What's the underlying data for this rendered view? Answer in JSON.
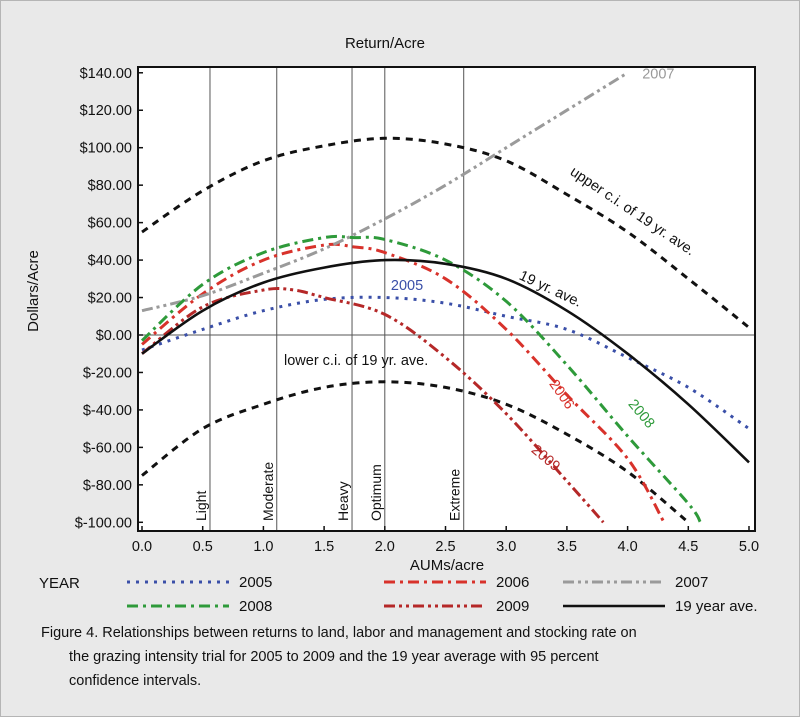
{
  "chart_data": {
    "type": "line",
    "title": "Return/Acre",
    "xlabel": "AUMs/acre",
    "ylabel": "Dollars/Acre",
    "xlim": [
      0.0,
      5.0
    ],
    "ylim": [
      -100,
      140
    ],
    "x_ticks": [
      "0.0",
      "0.5",
      "1.0",
      "1.5",
      "2.0",
      "2.5",
      "3.0",
      "3.5",
      "4.0",
      "4.5",
      "5.0"
    ],
    "x_tick_values": [
      0,
      0.5,
      1,
      1.5,
      2,
      2.5,
      3,
      3.5,
      4,
      4.5,
      5
    ],
    "y_ticks": [
      "$140.00",
      "$120.00",
      "$100.00",
      "$80.00",
      "$60.00",
      "$40.00",
      "$20.00",
      "$0.00",
      "$-20.00",
      "$-40.00",
      "$-60.00",
      "$-80.00",
      "$-100.00"
    ],
    "y_tick_values": [
      140,
      120,
      100,
      80,
      60,
      40,
      20,
      0,
      -20,
      -40,
      -60,
      -80,
      -100
    ],
    "zero_line": true,
    "grid": false,
    "stocking_rates": [
      {
        "label": "Light",
        "x": 0.56
      },
      {
        "label": "Moderate",
        "x": 1.11
      },
      {
        "label": "Heavy",
        "x": 1.73
      },
      {
        "label": "Optimum",
        "x": 2.0
      },
      {
        "label": "Extreme",
        "x": 2.65
      }
    ],
    "series": [
      {
        "name": "2005",
        "color": "#3a4fa8",
        "dash": "dot",
        "points": [
          [
            0,
            -8
          ],
          [
            0.5,
            3
          ],
          [
            1,
            13
          ],
          [
            1.5,
            19
          ],
          [
            2,
            20
          ],
          [
            2.5,
            17
          ],
          [
            3,
            10
          ],
          [
            3.5,
            3
          ],
          [
            4,
            -12
          ],
          [
            4.5,
            -28
          ],
          [
            5,
            -50
          ]
        ]
      },
      {
        "name": "2006",
        "color": "#d8322b",
        "dash": "dashdot",
        "points": [
          [
            0,
            -5
          ],
          [
            0.5,
            22
          ],
          [
            1,
            40
          ],
          [
            1.5,
            48
          ],
          [
            1.75,
            47
          ],
          [
            2,
            44
          ],
          [
            2.5,
            30
          ],
          [
            3,
            3
          ],
          [
            3.5,
            -32
          ],
          [
            4,
            -66
          ],
          [
            4.3,
            -100
          ]
        ]
      },
      {
        "name": "2007",
        "color": "#9a9a9a",
        "dash": "dashdotdot",
        "points": [
          [
            0,
            13
          ],
          [
            0.5,
            21
          ],
          [
            1,
            33
          ],
          [
            1.5,
            46
          ],
          [
            2,
            62
          ],
          [
            2.5,
            80
          ],
          [
            3,
            100
          ],
          [
            3.5,
            120
          ],
          [
            4,
            140
          ]
        ]
      },
      {
        "name": "2008",
        "color": "#2e9a3a",
        "dash": "dashdot",
        "points": [
          [
            0,
            -3
          ],
          [
            0.5,
            27
          ],
          [
            1,
            44
          ],
          [
            1.5,
            52
          ],
          [
            1.75,
            52
          ],
          [
            2,
            51
          ],
          [
            2.5,
            40
          ],
          [
            3,
            18
          ],
          [
            3.5,
            -16
          ],
          [
            4,
            -54
          ],
          [
            4.5,
            -90
          ],
          [
            4.6,
            -100
          ]
        ]
      },
      {
        "name": "2009",
        "color": "#b52828",
        "dash": "dashdotdot",
        "points": [
          [
            0,
            -10
          ],
          [
            0.5,
            15
          ],
          [
            1,
            24
          ],
          [
            1.25,
            24
          ],
          [
            1.5,
            20
          ],
          [
            2,
            11
          ],
          [
            2.5,
            -12
          ],
          [
            3,
            -42
          ],
          [
            3.5,
            -78
          ],
          [
            3.8,
            -100
          ]
        ]
      },
      {
        "name": "19 year ave.",
        "color": "#111111",
        "dash": "solid",
        "points": [
          [
            0,
            -10
          ],
          [
            0.5,
            13
          ],
          [
            1,
            28
          ],
          [
            1.5,
            36
          ],
          [
            2,
            40
          ],
          [
            2.5,
            38
          ],
          [
            3,
            30
          ],
          [
            3.5,
            13
          ],
          [
            4,
            -10
          ],
          [
            4.5,
            -37
          ],
          [
            5,
            -68
          ]
        ]
      }
    ],
    "confidence_intervals": [
      {
        "label": "upper c.i. of 19 yr. ave.",
        "color": "#111111",
        "dash": "dash",
        "points": [
          [
            0,
            55
          ],
          [
            0.5,
            77
          ],
          [
            1,
            93
          ],
          [
            1.5,
            101
          ],
          [
            2,
            105
          ],
          [
            2.5,
            102
          ],
          [
            3,
            93
          ],
          [
            3.5,
            75
          ],
          [
            4,
            55
          ],
          [
            4.5,
            30
          ],
          [
            5,
            4
          ]
        ]
      },
      {
        "label": "lower c.i. of 19 yr. ave.",
        "color": "#111111",
        "dash": "dash",
        "points": [
          [
            0,
            -75
          ],
          [
            0.5,
            -50
          ],
          [
            1,
            -37
          ],
          [
            1.5,
            -28
          ],
          [
            2,
            -25
          ],
          [
            2.5,
            -28
          ],
          [
            3,
            -37
          ],
          [
            3.5,
            -53
          ],
          [
            4,
            -73
          ],
          [
            4.5,
            -100
          ]
        ]
      }
    ],
    "inline_labels": [
      {
        "text": "2005",
        "color": "#3a4fa8",
        "x": 2.05,
        "y": 24,
        "rotate": 0
      },
      {
        "text": "2006",
        "color": "#d8322b",
        "x": 3.35,
        "y": -26,
        "rotate": 55
      },
      {
        "text": "2007",
        "color": "#9a9a9a",
        "x": 4.12,
        "y": 137,
        "rotate": 0
      },
      {
        "text": "2008",
        "color": "#2e9a3a",
        "x": 4.0,
        "y": -37,
        "rotate": 50
      },
      {
        "text": "2009",
        "color": "#b52828",
        "x": 3.2,
        "y": -62,
        "rotate": 40
      },
      {
        "text": "19 yr. ave.",
        "color": "#111111",
        "x": 3.1,
        "y": 30,
        "rotate": 25
      },
      {
        "text": "upper c.i. of 19 yr. ave.",
        "color": "#111111",
        "x": 3.52,
        "y": 86,
        "rotate": 34
      },
      {
        "text": "lower c.i. of 19 yr. ave.",
        "color": "#111111",
        "x": 1.17,
        "y": -16,
        "rotate": 0
      }
    ]
  },
  "legend": {
    "title": "YEAR",
    "entries": [
      {
        "name": "2005",
        "color": "#3a4fa8",
        "dash": "dot"
      },
      {
        "name": "2006",
        "color": "#d8322b",
        "dash": "dashdot"
      },
      {
        "name": "2007",
        "color": "#9a9a9a",
        "dash": "dashdotdot"
      },
      {
        "name": "2008",
        "color": "#2e9a3a",
        "dash": "dashdot"
      },
      {
        "name": "2009",
        "color": "#b52828",
        "dash": "dashdotdot"
      },
      {
        "name": "19 year ave.",
        "color": "#111111",
        "dash": "solid"
      }
    ]
  },
  "caption": {
    "line1": "Figure 4. Relationships between returns to land, labor and management and stocking rate on",
    "line2": "the grazing intensity trial for 2005 to 2009 and the 19 year average with 95 percent",
    "line3": "confidence intervals."
  }
}
